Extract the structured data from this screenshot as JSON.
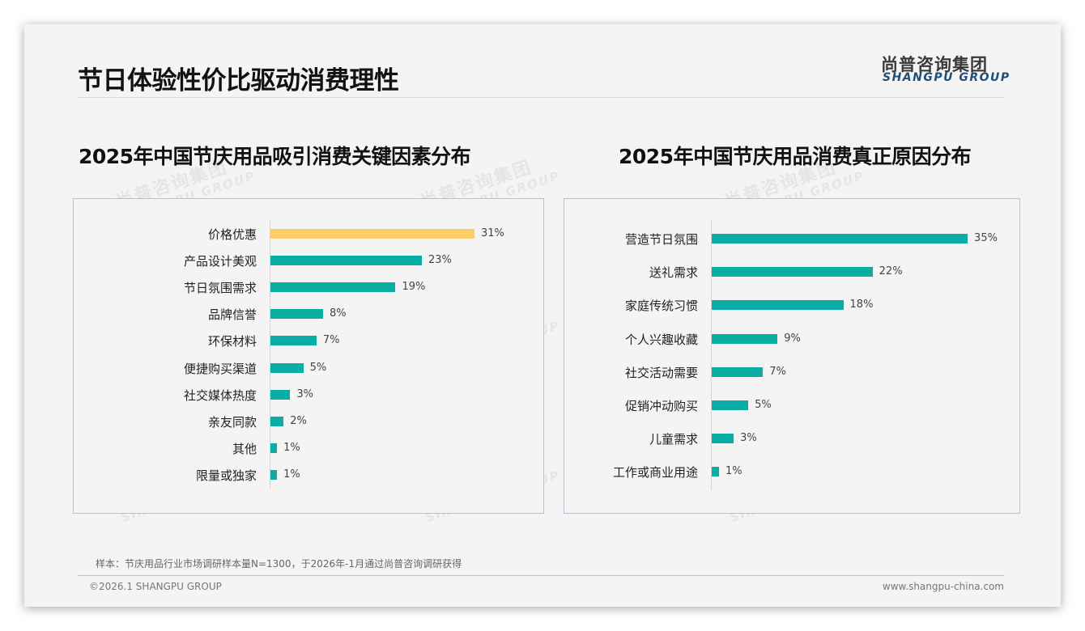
{
  "page": {
    "title": "节日体验性价比驱动消费理性",
    "logo": {
      "cn": "尚普咨询集团",
      "en": "SHANGPU GROUP"
    },
    "watermark": {
      "cn": "尚普咨询集团",
      "en": "SHANGPU GROUP"
    },
    "note": "样本：节庆用品行业市场调研样本量N=1300，于2026年-1月通过尚普咨询调研获得",
    "copyright": "©2026.1 SHANGPU GROUP",
    "url": "www.shangpu-china.com"
  },
  "colors": {
    "teal": "#0aaea5",
    "highlight": "#ffcc66",
    "logo_blue": "#1f4e79",
    "panel_border": "#b4c2d2"
  },
  "chart_data": [
    {
      "type": "bar",
      "orientation": "horizontal",
      "title": "2025年中国节庆用品吸引消费关键因素分布",
      "categories": [
        "价格优惠",
        "产品设计美观",
        "节日氛围需求",
        "品牌信誉",
        "环保材料",
        "便捷购买渠道",
        "社交媒体热度",
        "亲友同款",
        "其他",
        "限量或独家"
      ],
      "values": [
        31,
        23,
        19,
        8,
        7,
        5,
        3,
        2,
        1,
        1
      ],
      "labels": [
        "31%",
        "23%",
        "19%",
        "8%",
        "7%",
        "5%",
        "3%",
        "2%",
        "1%",
        "1%"
      ],
      "unit": "%",
      "highlight_index": 0,
      "xlabel": "",
      "ylabel": "",
      "grid": false,
      "legend": "none"
    },
    {
      "type": "bar",
      "orientation": "horizontal",
      "title": "2025年中国节庆用品消费真正原因分布",
      "categories": [
        "营造节日氛围",
        "送礼需求",
        "家庭传统习惯",
        "个人兴趣收藏",
        "社交活动需要",
        "促销冲动购买",
        "儿童需求",
        "工作或商业用途"
      ],
      "values": [
        35,
        22,
        18,
        9,
        7,
        5,
        3,
        1
      ],
      "labels": [
        "35%",
        "22%",
        "18%",
        "9%",
        "7%",
        "5%",
        "3%",
        "1%"
      ],
      "unit": "%",
      "highlight_index": -1,
      "xlabel": "",
      "ylabel": "",
      "grid": false,
      "legend": "none"
    }
  ]
}
